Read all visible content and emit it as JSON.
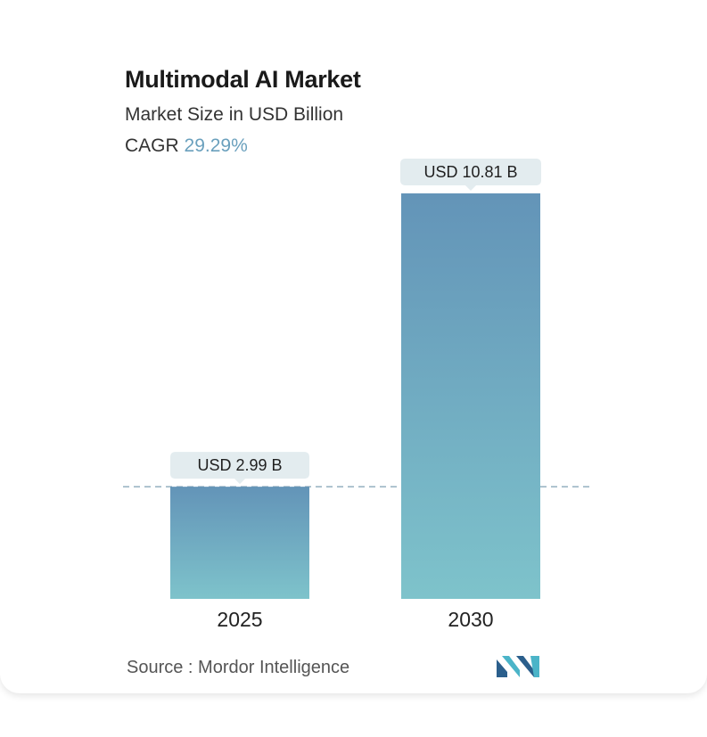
{
  "header": {
    "title": "Multimodal AI Market",
    "subtitle": "Market Size in USD Billion",
    "cagr_label": "CAGR",
    "cagr_value": "29.29%"
  },
  "footer": {
    "source": "Source :  Mordor Intelligence"
  },
  "colors": {
    "bar_top": "#6394b8",
    "bar_bottom": "#7ec3cb",
    "label_bg": "#e3ecef",
    "dashed_line": "#7f9fb3",
    "logo_dark": "#2b5f8c",
    "logo_light": "#4bb4c8"
  },
  "chart_data": {
    "type": "bar",
    "title": "Multimodal AI Market",
    "ylabel": "Market Size in USD Billion",
    "categories": [
      "2025",
      "2030"
    ],
    "values": [
      2.99,
      10.81
    ],
    "data_labels": [
      "USD 2.99 B",
      "USD 10.81 B"
    ],
    "ylim": [
      0,
      10.81
    ],
    "grid": false,
    "legend": "none",
    "reference_line": "dashed line at 2025 value"
  }
}
